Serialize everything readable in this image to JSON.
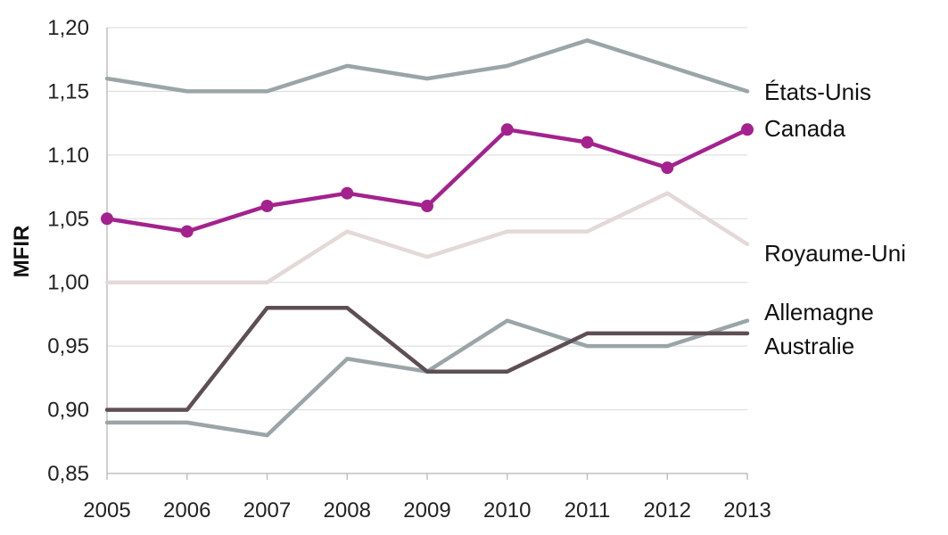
{
  "chart_data": {
    "type": "line",
    "title": "",
    "xlabel": "",
    "ylabel": "MFIR",
    "ylim": [
      0.85,
      1.2
    ],
    "y_ticks": [
      "0,85",
      "0,90",
      "0,95",
      "1,00",
      "1,05",
      "1,10",
      "1,15",
      "1,20"
    ],
    "y_tick_values": [
      0.85,
      0.9,
      0.95,
      1.0,
      1.05,
      1.1,
      1.15,
      1.2
    ],
    "x": [
      "2005",
      "2006",
      "2007",
      "2008",
      "2009",
      "2010",
      "2011",
      "2012",
      "2013"
    ],
    "grid": "horizontal",
    "legend": "none",
    "series": [
      {
        "name": "États-Unis",
        "color": "#9aa5a8",
        "markers": false,
        "values": [
          1.16,
          1.15,
          1.15,
          1.17,
          1.16,
          1.17,
          1.19,
          1.17,
          1.15
        ]
      },
      {
        "name": "Canada",
        "color": "#a3228e",
        "markers": true,
        "values": [
          1.05,
          1.04,
          1.06,
          1.07,
          1.06,
          1.12,
          1.11,
          1.09,
          1.12
        ]
      },
      {
        "name": "Royaume-Uni",
        "color": "#e3d9d6",
        "markers": false,
        "values": [
          1.0,
          1.0,
          1.0,
          1.04,
          1.02,
          1.04,
          1.04,
          1.07,
          1.03
        ]
      },
      {
        "name": "Allemagne",
        "color": "#9aa5a8",
        "markers": false,
        "values": [
          0.89,
          0.89,
          0.88,
          0.94,
          0.93,
          0.97,
          0.95,
          0.95,
          0.97
        ]
      },
      {
        "name": "Australie",
        "color": "#5d4f54",
        "markers": false,
        "values": [
          0.9,
          0.9,
          0.98,
          0.98,
          0.93,
          0.93,
          0.96,
          0.96,
          0.96
        ]
      }
    ]
  }
}
